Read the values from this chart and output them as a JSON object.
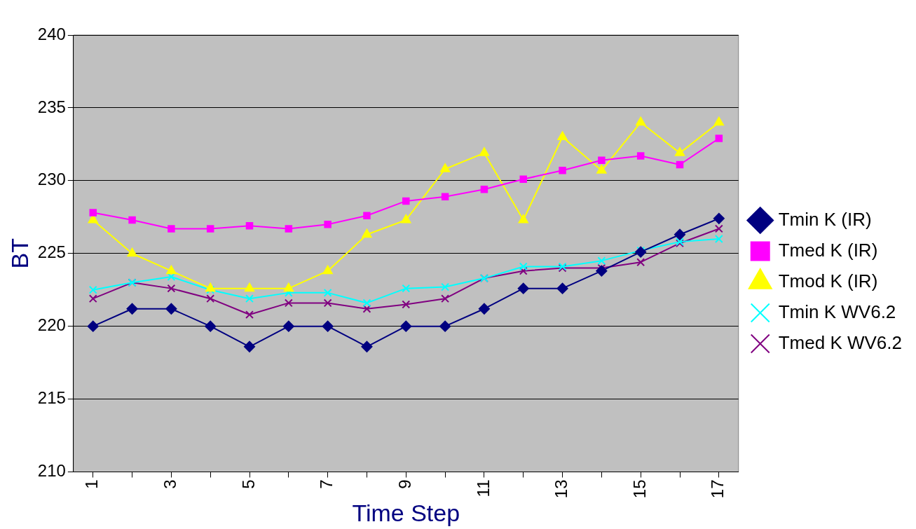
{
  "chart_data": {
    "type": "line",
    "xlabel": "Time Step",
    "ylabel": "BT",
    "categories": [
      "1",
      null,
      "3",
      null,
      "5",
      null,
      "7",
      null,
      "9",
      null,
      "11",
      null,
      "13",
      null,
      "15",
      null,
      "17"
    ],
    "ylim": [
      210,
      240
    ],
    "yticks": [
      210,
      215,
      220,
      225,
      230,
      235,
      240
    ],
    "grid": "y",
    "legend": "right",
    "line_style": "solid",
    "series": [
      {
        "name": "Tmin K (IR)",
        "color": "#000080",
        "marker": "diamond",
        "values": [
          220.0,
          221.2,
          221.2,
          220.0,
          218.6,
          220.0,
          220.0,
          218.6,
          220.0,
          220.0,
          221.2,
          222.6,
          222.6,
          223.8,
          225.1,
          226.3,
          227.4
        ]
      },
      {
        "name": "Tmed K (IR)",
        "color": "#ff00ff",
        "marker": "square",
        "values": [
          227.8,
          227.3,
          226.7,
          226.7,
          226.9,
          226.7,
          227.0,
          227.6,
          228.6,
          228.9,
          229.4,
          230.1,
          230.7,
          231.4,
          231.7,
          231.1,
          232.9
        ]
      },
      {
        "name": "Tmod K (IR)",
        "color": "#ffff00",
        "marker": "triangle",
        "values": [
          227.3,
          225.0,
          223.8,
          222.6,
          222.6,
          222.6,
          223.8,
          226.3,
          227.3,
          230.8,
          231.9,
          227.3,
          233.0,
          230.7,
          234.0,
          231.9,
          234.0
        ]
      },
      {
        "name": "Tmin K WV6.2",
        "color": "#00ffff",
        "marker": "cross",
        "values": [
          222.5,
          223.0,
          223.4,
          222.5,
          221.9,
          222.3,
          222.3,
          221.6,
          222.6,
          222.7,
          223.3,
          224.1,
          224.1,
          224.5,
          225.2,
          225.8,
          226.0
        ]
      },
      {
        "name": "Tmed K WV6.2",
        "color": "#800080",
        "marker": "cross",
        "values": [
          221.9,
          223.0,
          222.6,
          221.9,
          220.8,
          221.6,
          221.6,
          221.2,
          221.5,
          221.9,
          223.3,
          223.8,
          224.0,
          224.0,
          224.4,
          225.7,
          226.7
        ]
      }
    ]
  }
}
